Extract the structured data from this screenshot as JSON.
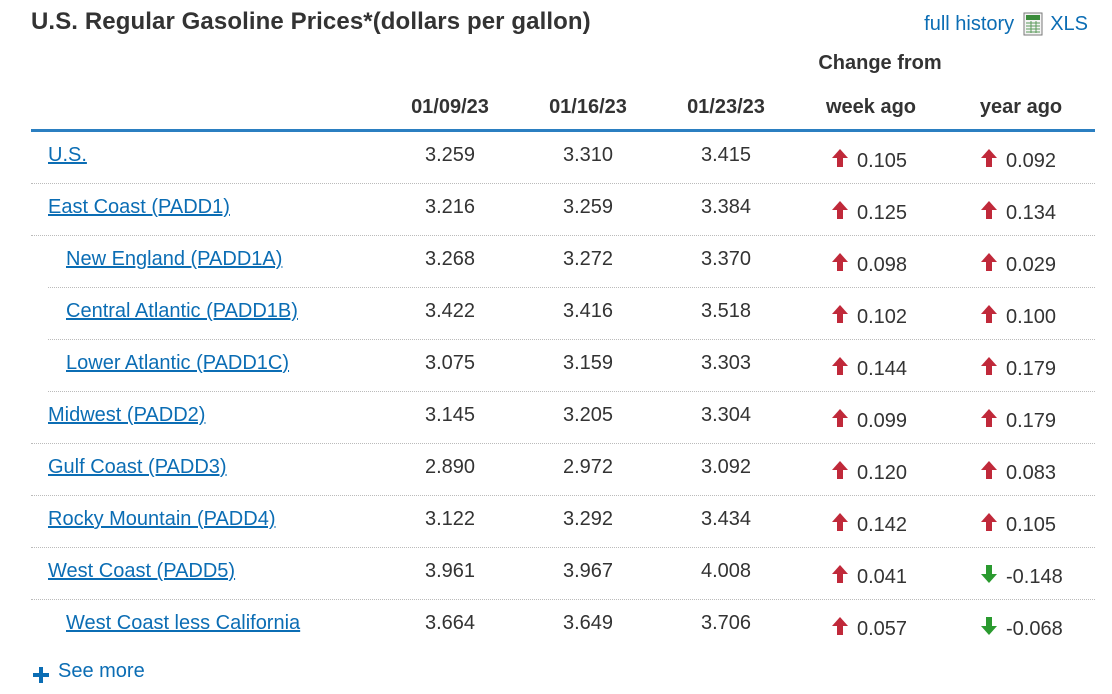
{
  "title": "U.S. Regular Gasoline Prices*(dollars per gallon)",
  "links": {
    "history": "full history",
    "xls": "XLS"
  },
  "header": {
    "change_from": "Change from",
    "dates": [
      "01/09/23",
      "01/16/23",
      "01/23/23"
    ],
    "week_ago": "week ago",
    "year_ago": "year ago"
  },
  "colors": {
    "up": "#c0293a",
    "down": "#2a9a2f",
    "link": "#0b6db4",
    "rule": "#2b7fc1"
  },
  "rows": [
    {
      "name": "U.S.",
      "v1": "3.259",
      "v2": "3.310",
      "v3": "3.415",
      "week": "0.105",
      "week_dir": "up",
      "year": "0.092",
      "year_dir": "up"
    },
    {
      "name": "East Coast (PADD1)",
      "v1": "3.216",
      "v2": "3.259",
      "v3": "3.384",
      "week": "0.125",
      "week_dir": "up",
      "year": "0.134",
      "year_dir": "up"
    },
    {
      "name": "New England (PADD1A)",
      "v1": "3.268",
      "v2": "3.272",
      "v3": "3.370",
      "week": "0.098",
      "week_dir": "up",
      "year": "0.029",
      "year_dir": "up"
    },
    {
      "name": "Central Atlantic (PADD1B)",
      "v1": "3.422",
      "v2": "3.416",
      "v3": "3.518",
      "week": "0.102",
      "week_dir": "up",
      "year": "0.100",
      "year_dir": "up"
    },
    {
      "name": "Lower Atlantic (PADD1C)",
      "v1": "3.075",
      "v2": "3.159",
      "v3": "3.303",
      "week": "0.144",
      "week_dir": "up",
      "year": "0.179",
      "year_dir": "up"
    },
    {
      "name": "Midwest (PADD2)",
      "v1": "3.145",
      "v2": "3.205",
      "v3": "3.304",
      "week": "0.099",
      "week_dir": "up",
      "year": "0.179",
      "year_dir": "up"
    },
    {
      "name": "Gulf Coast (PADD3)",
      "v1": "2.890",
      "v2": "2.972",
      "v3": "3.092",
      "week": "0.120",
      "week_dir": "up",
      "year": "0.083",
      "year_dir": "up"
    },
    {
      "name": "Rocky Mountain (PADD4)",
      "v1": "3.122",
      "v2": "3.292",
      "v3": "3.434",
      "week": "0.142",
      "week_dir": "up",
      "year": "0.105",
      "year_dir": "up"
    },
    {
      "name": "West Coast (PADD5)",
      "v1": "3.961",
      "v2": "3.967",
      "v3": "4.008",
      "week": "0.041",
      "week_dir": "up",
      "year": "-0.148",
      "year_dir": "down"
    },
    {
      "name": "West Coast less California",
      "v1": "3.664",
      "v2": "3.649",
      "v3": "3.706",
      "week": "0.057",
      "week_dir": "up",
      "year": "-0.068",
      "year_dir": "down"
    }
  ],
  "see_more": "See more"
}
